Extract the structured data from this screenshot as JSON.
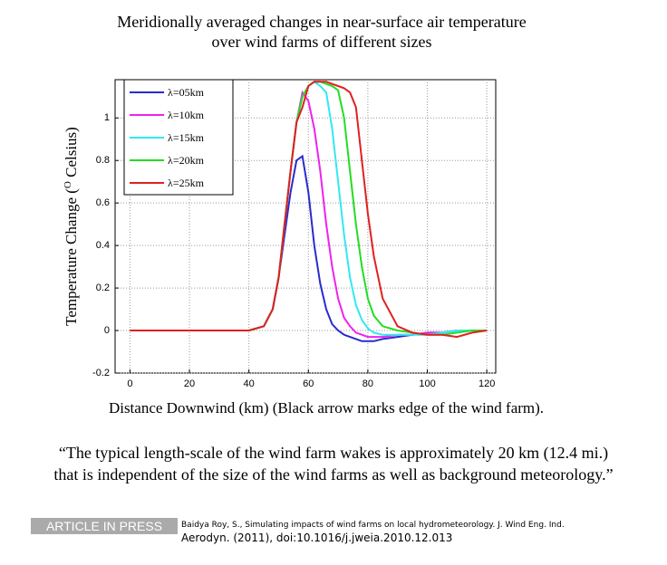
{
  "chart_data": {
    "type": "line",
    "title_lines": [
      "Meridionally averaged changes in near-surface air temperature",
      "over wind farms of different sizes"
    ],
    "y_label": {
      "before": "Temperature Change (",
      "superscript": "O",
      "after": " Celsius)"
    },
    "x_label": "Distance Downwind (km) (Black arrow marks edge of the wind farm).",
    "x": [
      0,
      10,
      20,
      30,
      40,
      45,
      48,
      50,
      52,
      54,
      56,
      58,
      60,
      62,
      64,
      66,
      68,
      70,
      72,
      74,
      76,
      78,
      80,
      82,
      85,
      90,
      95,
      100,
      105,
      110,
      115,
      120
    ],
    "series": [
      {
        "name": "λ=05km",
        "color": "#2a2ad0",
        "values": [
          0,
          0,
          0,
          0,
          0,
          0.02,
          0.1,
          0.25,
          0.45,
          0.65,
          0.8,
          0.82,
          0.65,
          0.4,
          0.22,
          0.1,
          0.03,
          0,
          -0.02,
          -0.03,
          -0.04,
          -0.05,
          -0.05,
          -0.05,
          -0.04,
          -0.03,
          -0.02,
          -0.01,
          -0.01,
          0,
          0,
          0
        ]
      },
      {
        "name": "λ=10km",
        "color": "#ee22ee",
        "values": [
          0,
          0,
          0,
          0,
          0,
          0.02,
          0.1,
          0.25,
          0.5,
          0.75,
          0.98,
          1.12,
          1.08,
          0.95,
          0.75,
          0.5,
          0.3,
          0.15,
          0.06,
          0.02,
          -0.01,
          -0.02,
          -0.03,
          -0.03,
          -0.03,
          -0.02,
          -0.02,
          -0.01,
          -0.01,
          0,
          0,
          0
        ]
      },
      {
        "name": "λ=15km",
        "color": "#33e8f0",
        "values": [
          0,
          0,
          0,
          0,
          0,
          0.02,
          0.1,
          0.25,
          0.5,
          0.75,
          0.98,
          1.1,
          1.15,
          1.17,
          1.15,
          1.12,
          0.95,
          0.7,
          0.45,
          0.25,
          0.12,
          0.05,
          0.01,
          -0.01,
          -0.02,
          -0.02,
          -0.02,
          -0.02,
          -0.01,
          0,
          0,
          0
        ]
      },
      {
        "name": "λ=20km",
        "color": "#22dd22",
        "values": [
          0,
          0,
          0,
          0,
          0,
          0.02,
          0.1,
          0.25,
          0.5,
          0.75,
          0.98,
          1.1,
          1.15,
          1.17,
          1.17,
          1.16,
          1.15,
          1.13,
          1.0,
          0.75,
          0.5,
          0.3,
          0.15,
          0.07,
          0.02,
          0,
          -0.01,
          -0.02,
          -0.02,
          -0.01,
          0,
          0
        ]
      },
      {
        "name": "λ=25km",
        "color": "#e02020",
        "values": [
          0,
          0,
          0,
          0,
          0,
          0.02,
          0.1,
          0.25,
          0.5,
          0.75,
          0.98,
          1.05,
          1.15,
          1.17,
          1.17,
          1.17,
          1.16,
          1.15,
          1.14,
          1.12,
          1.05,
          0.8,
          0.55,
          0.35,
          0.15,
          0.02,
          -0.01,
          -0.02,
          -0.02,
          -0.03,
          -0.01,
          0
        ]
      }
    ],
    "xlim": [
      -5,
      123
    ],
    "ylim": [
      -0.2,
      1.18
    ],
    "xticks": [
      0,
      20,
      40,
      60,
      80,
      100,
      120
    ],
    "yticks": [
      -0.2,
      0,
      0.2,
      0.4,
      0.6,
      0.8,
      1
    ],
    "grid": true,
    "legend": "upper-left"
  },
  "quote_lines": [
    "“The typical length-scale of the wind farm wakes is approximately 20 km (12.4 mi.)",
    "that is independent of the size of the wind farms as well as background meteorology.”"
  ],
  "citation": {
    "badge": "ARTICLE IN PRESS",
    "line1": "Baidya Roy, S., Simulating impacts of wind farms on local hydrometeorology. J. Wind Eng. Ind.",
    "line2": "Aerodyn. (2011), doi:10.1016/j.jweia.2010.12.013"
  }
}
